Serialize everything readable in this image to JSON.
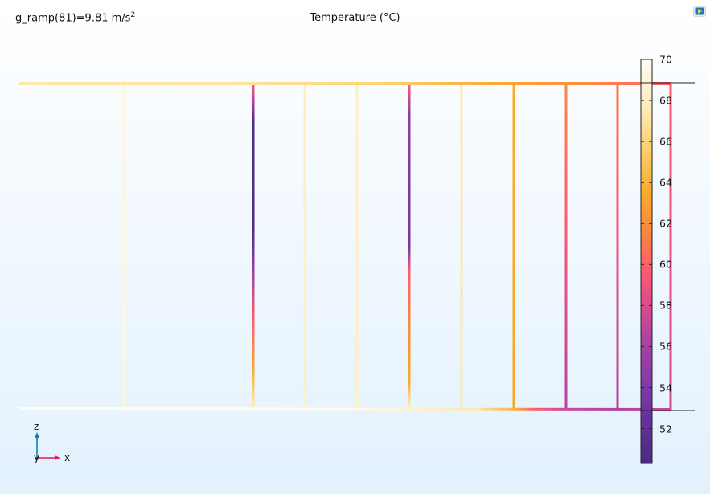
{
  "header": {
    "expression": "g_ramp(81)=9.81 m/s",
    "exponent": "2",
    "title": "Temperature (°C)"
  },
  "colorbar": {
    "min": 50.3,
    "max": 70,
    "ticks": [
      "52",
      "54",
      "56",
      "58",
      "60",
      "62",
      "64",
      "66",
      "68",
      "70"
    ],
    "colors": [
      "#4a2a80",
      "#8a3ca8",
      "#cc4a90",
      "#ff5a70",
      "#fb8a38",
      "#f8ab28",
      "#fdd070",
      "#fdebb8",
      "#fffdf5"
    ]
  },
  "axes": {
    "z": "z",
    "y": "y",
    "x": "x"
  },
  "icons": {
    "logo": "comsol-logo-icon"
  },
  "colors": {
    "z_axis": "#0a87a8",
    "x_axis": "#e31a59"
  }
}
